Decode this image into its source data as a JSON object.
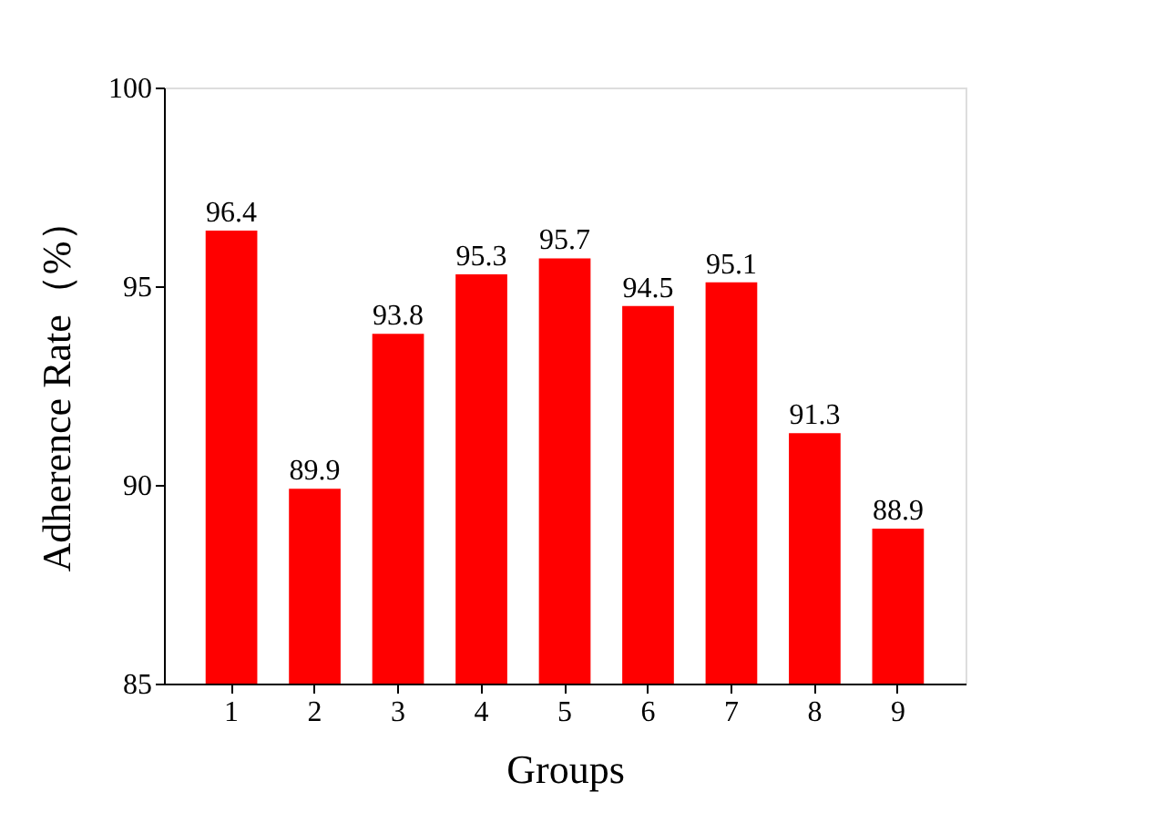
{
  "chart_data": {
    "type": "bar",
    "xlabel": "Groups",
    "ylabel": "Adherence Rate（%）",
    "categories": [
      "1",
      "2",
      "3",
      "4",
      "5",
      "6",
      "7",
      "8",
      "9"
    ],
    "values": [
      96.4,
      89.9,
      93.8,
      95.3,
      95.7,
      94.5,
      95.1,
      91.3,
      88.9
    ],
    "color": "#ff0000",
    "ylim": [
      85,
      100
    ],
    "yticks": [
      85,
      90,
      95,
      100
    ],
    "grid": false,
    "data_labels": true
  }
}
